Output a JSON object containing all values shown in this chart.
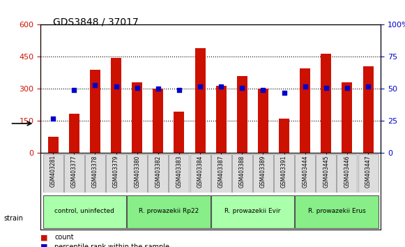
{
  "title": "GDS3848 / 37017",
  "categories": [
    "GSM403281",
    "GSM403377",
    "GSM403378",
    "GSM403379",
    "GSM403380",
    "GSM403382",
    "GSM403383",
    "GSM403384",
    "GSM403387",
    "GSM403388",
    "GSM403389",
    "GSM403391",
    "GSM403444",
    "GSM403445",
    "GSM403446",
    "GSM403447"
  ],
  "count_values": [
    75,
    185,
    390,
    445,
    330,
    300,
    195,
    490,
    315,
    360,
    300,
    160,
    395,
    465,
    330,
    405
  ],
  "percentile_values": [
    27,
    49,
    53,
    52,
    51,
    50,
    49,
    52,
    52,
    51,
    49,
    47,
    52,
    51,
    51,
    52
  ],
  "bar_color": "#cc1100",
  "dot_color": "#0000cc",
  "ylim_left": [
    0,
    600
  ],
  "ylim_right": [
    0,
    100
  ],
  "yticks_left": [
    0,
    150,
    300,
    450,
    600
  ],
  "yticks_right": [
    0,
    25,
    50,
    75,
    100
  ],
  "groups": [
    {
      "label": "control, uninfected",
      "start": 0,
      "end": 3,
      "color": "#aaffaa"
    },
    {
      "label": "R. prowazekii Rp22",
      "start": 4,
      "end": 7,
      "color": "#88ee88"
    },
    {
      "label": "R. prowazekii Evir",
      "start": 8,
      "end": 11,
      "color": "#aaffaa"
    },
    {
      "label": "R. prowazekii Erus",
      "start": 12,
      "end": 15,
      "color": "#88ee88"
    }
  ],
  "legend_count_label": "count",
  "legend_pct_label": "percentile rank within the sample",
  "strain_label": "strain"
}
